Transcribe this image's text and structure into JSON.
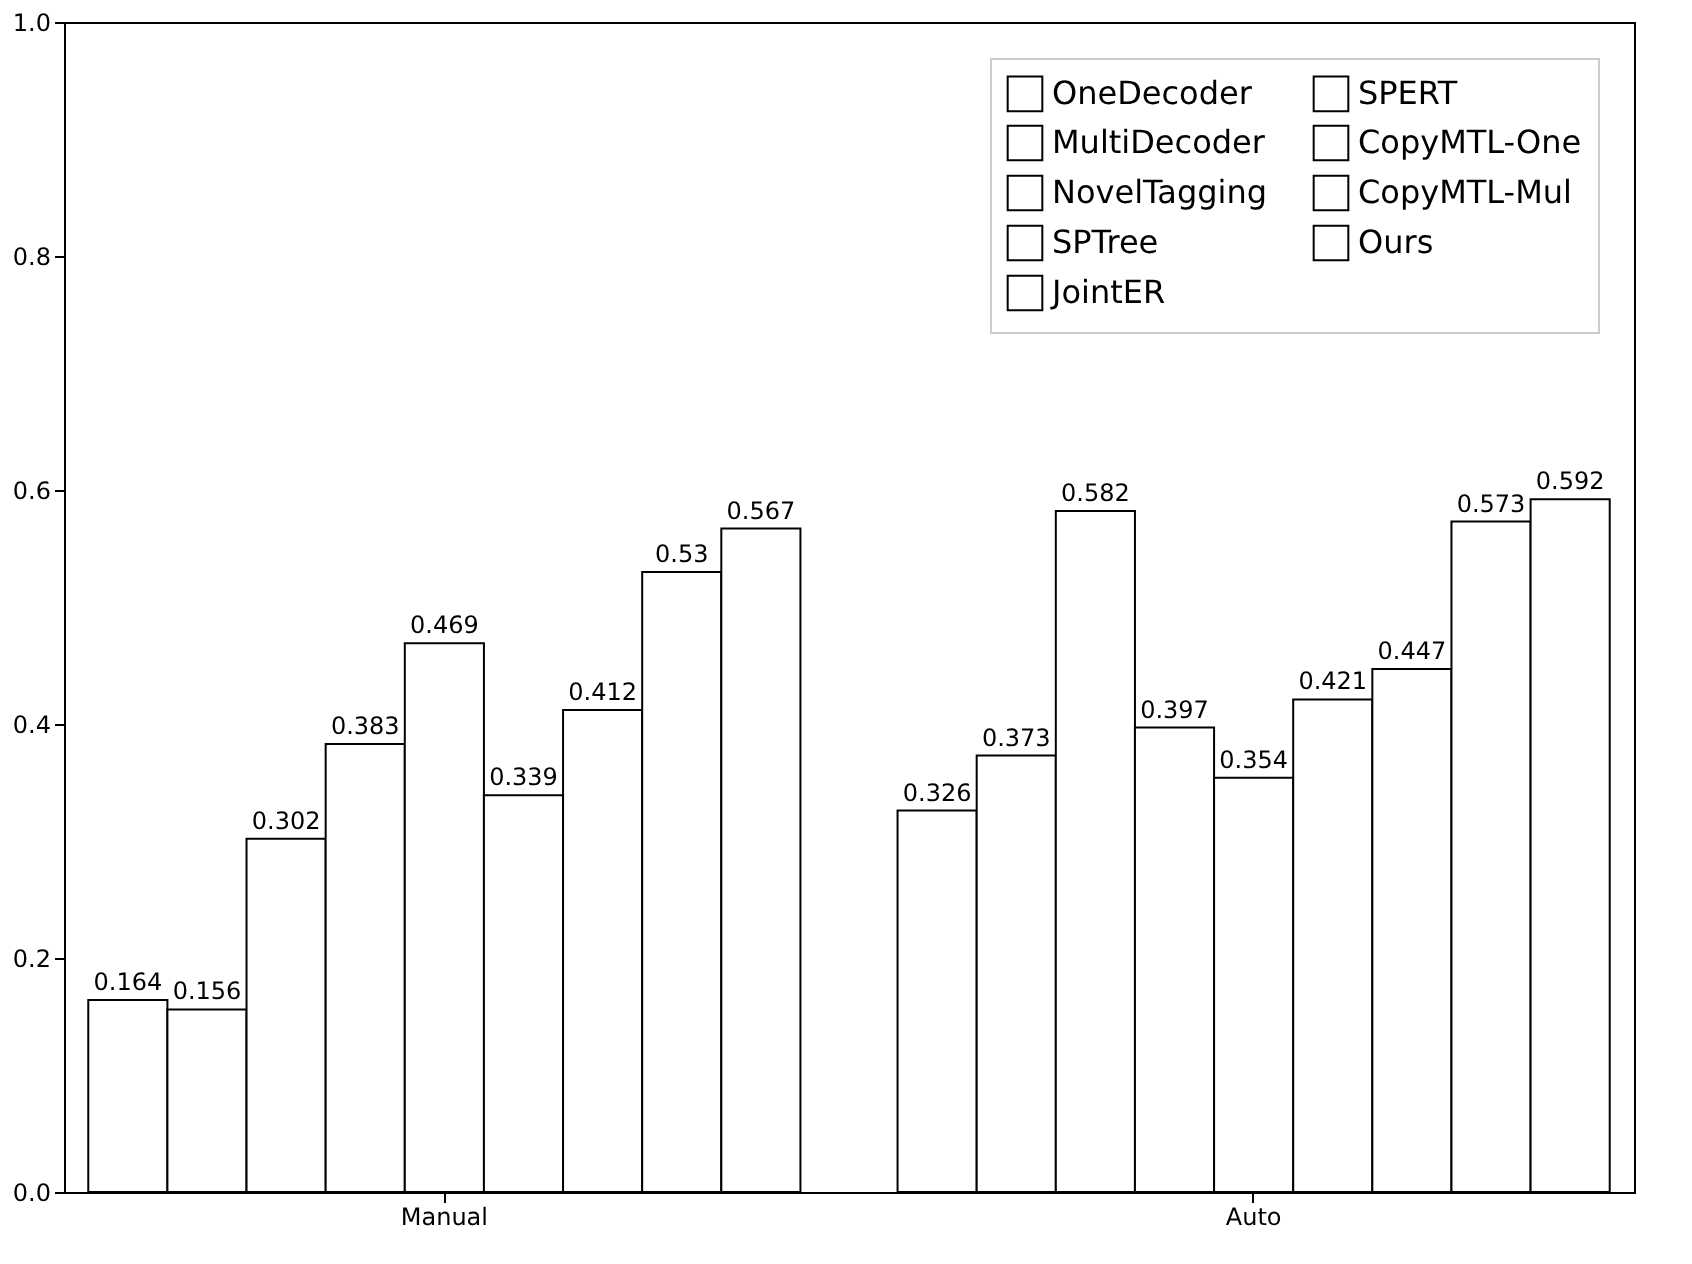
{
  "chart_data": {
    "type": "bar",
    "categories": [
      "Manual",
      "Auto"
    ],
    "series": [
      {
        "name": "OneDecoder",
        "color": "#ffffff",
        "values": [
          0.164,
          0.326
        ]
      },
      {
        "name": "MultiDecoder",
        "color": "#ffffff",
        "values": [
          0.156,
          0.373
        ]
      },
      {
        "name": "NovelTagging",
        "color": "#ffffff",
        "values": [
          0.302,
          0.582
        ]
      },
      {
        "name": "SPTree",
        "color": "#ffffff",
        "values": [
          0.383,
          0.397
        ]
      },
      {
        "name": "JointER",
        "color": "#ffffff",
        "values": [
          0.469,
          0.354
        ]
      },
      {
        "name": "SPERT",
        "color": "#ffffff",
        "values": [
          0.339,
          0.421
        ]
      },
      {
        "name": "CopyMTL-One",
        "color": "#ffffff",
        "values": [
          0.412,
          0.447
        ]
      },
      {
        "name": "CopyMTL-Mul",
        "color": "#ffffff",
        "values": [
          0.53,
          0.573
        ]
      },
      {
        "name": "Ours",
        "color": "#ffffff",
        "values": [
          0.567,
          0.592
        ]
      }
    ],
    "ylim": [
      0,
      1.0
    ],
    "yticks": [
      {
        "value": 0,
        "label": "0.0"
      },
      0.2,
      0.4,
      0.6,
      0.8,
      {
        "value": 1,
        "label": "1.0"
      }
    ],
    "data_labels": true,
    "grid": false,
    "legend": "top right"
  }
}
